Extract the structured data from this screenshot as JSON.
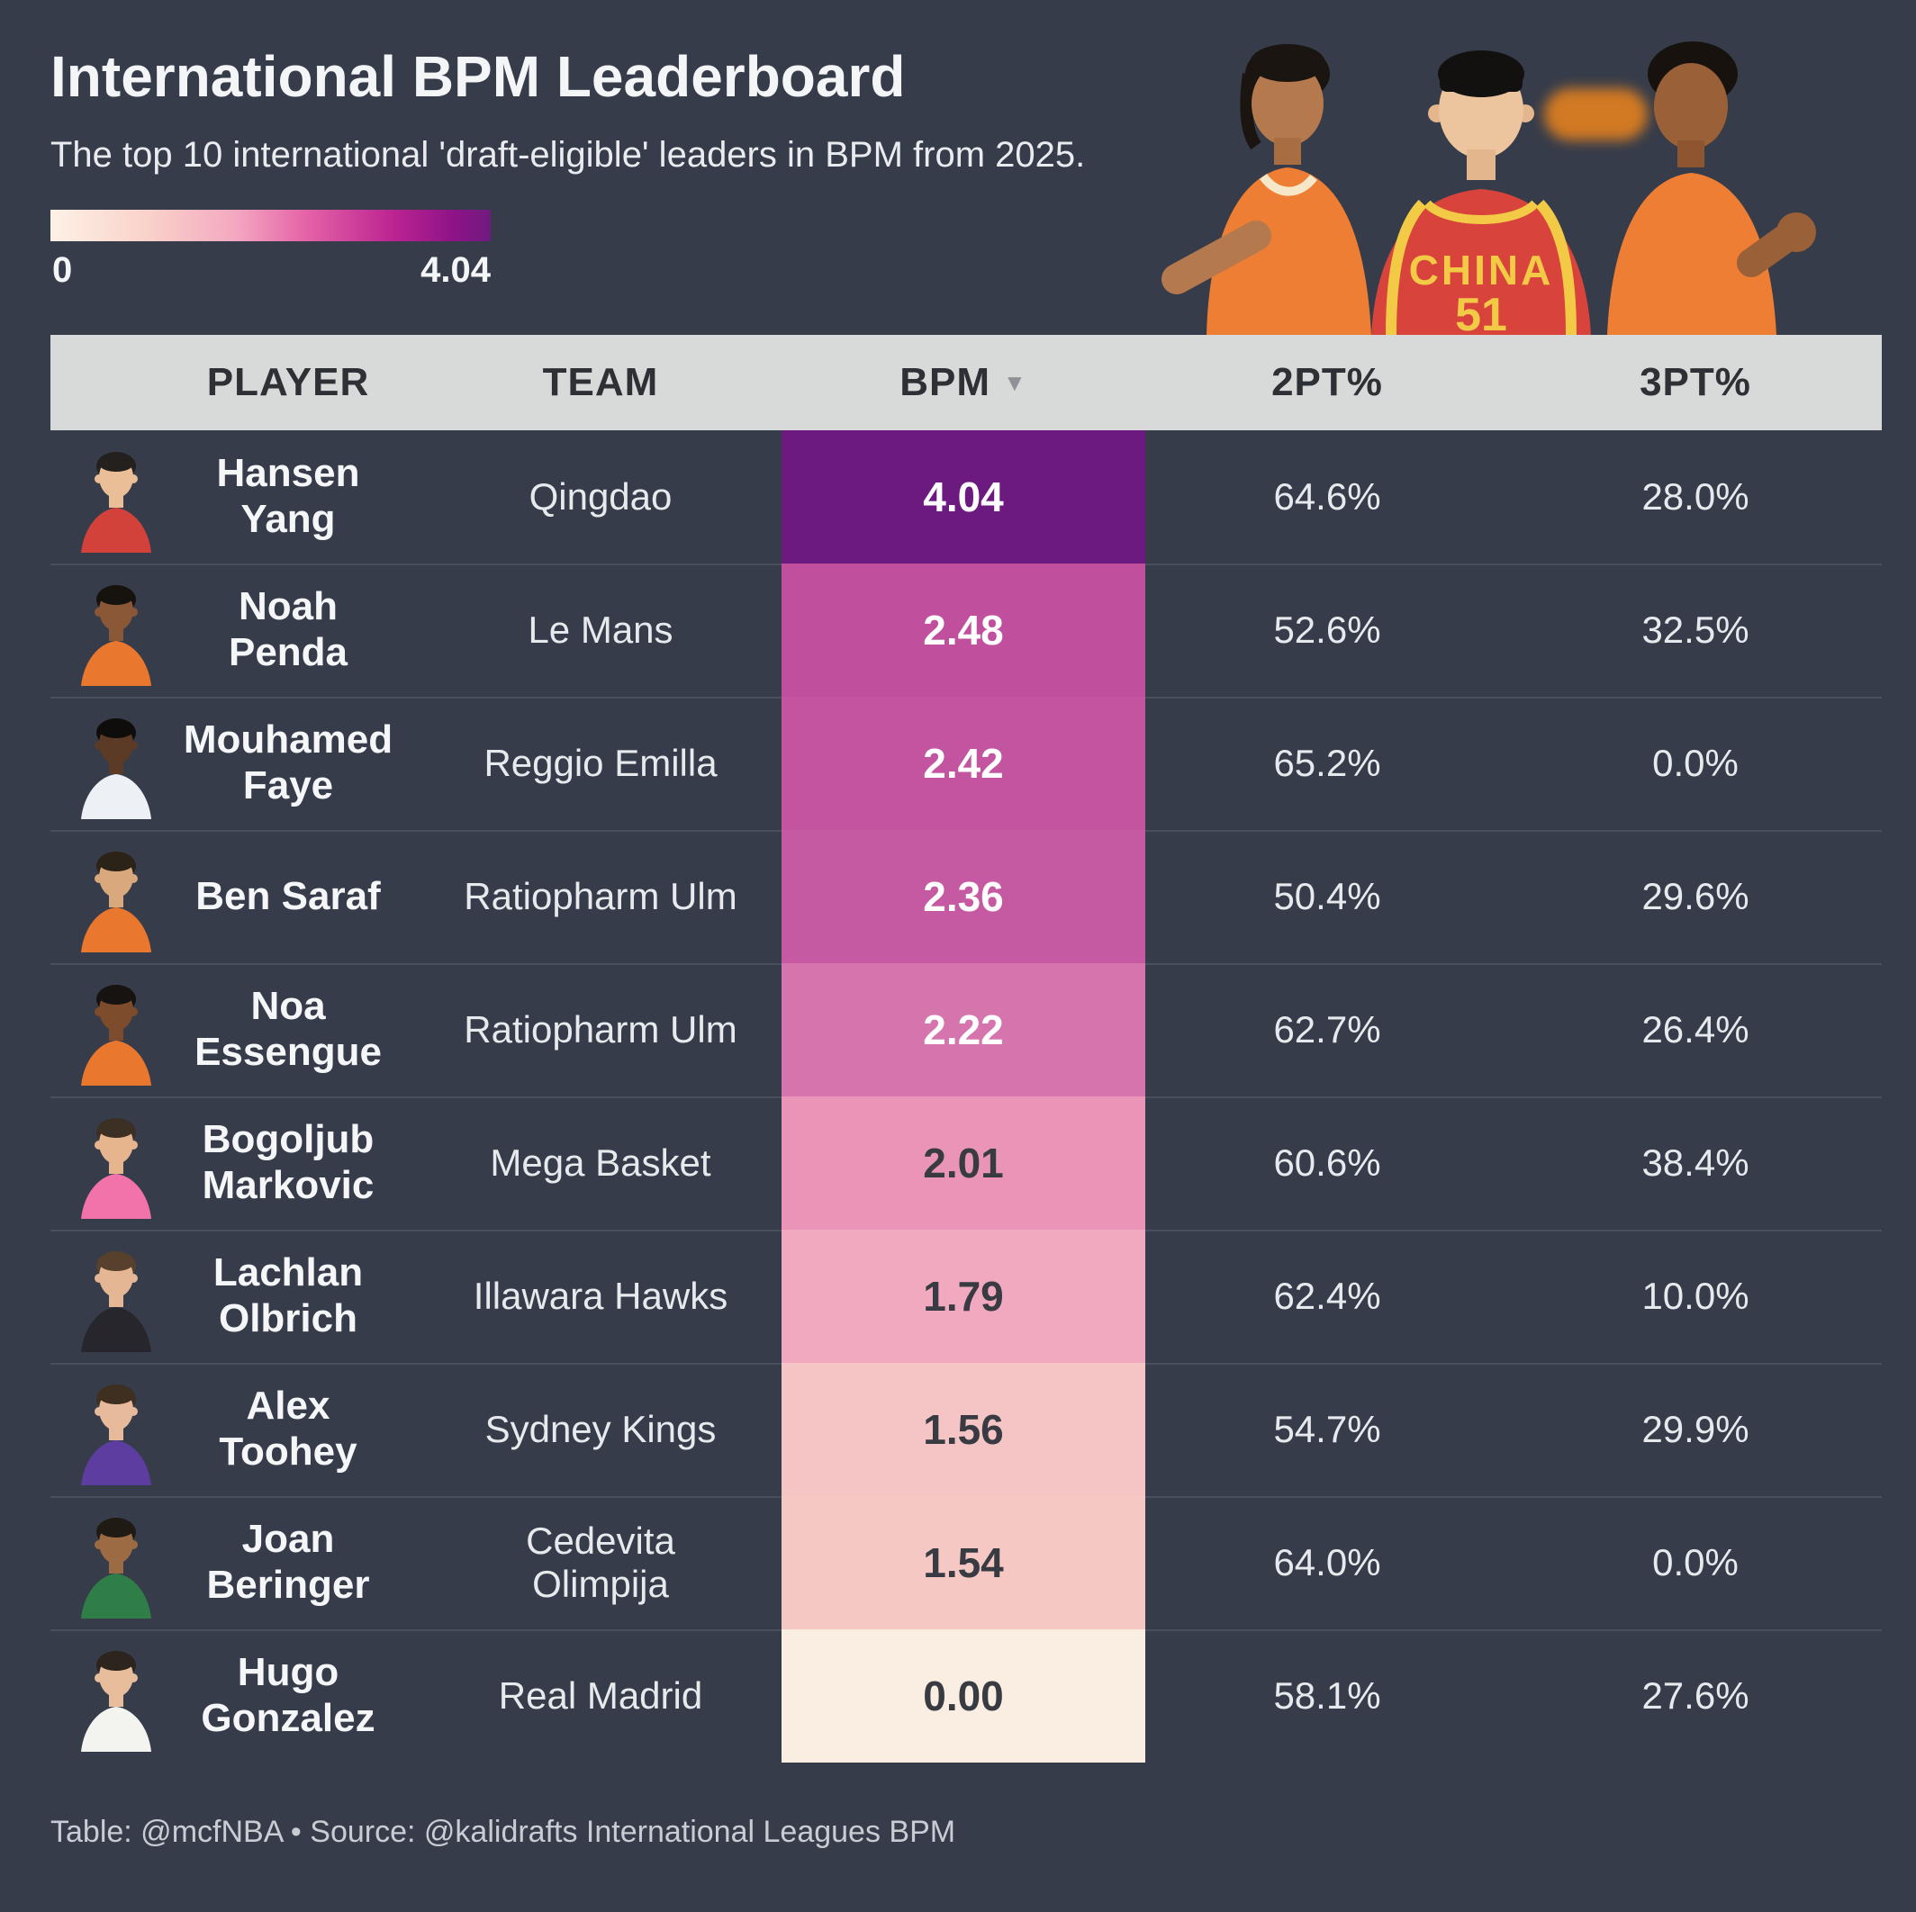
{
  "header": {
    "title": "International BPM Leaderboard",
    "subtitle": "The top 10 international 'draft-eligible' leaders in BPM from 2025.",
    "legend": {
      "min_label": "0",
      "max_label": "4.04",
      "gradient_colors": [
        "#fdf1e6",
        "#f4a8c0",
        "#bc2391",
        "#701b80"
      ]
    }
  },
  "hero": {
    "jersey_text": "CHINA",
    "jersey_number": "51"
  },
  "table": {
    "col_player": "PLAYER",
    "col_team": "TEAM",
    "col_bpm": "BPM",
    "sort_icon": "▼",
    "col_2pt": "2PT%",
    "col_3pt": "3PT%",
    "rows": [
      {
        "name": "Hansen\nYang",
        "team": "Qingdao",
        "bpm": "4.04",
        "p2": "64.6%",
        "p3": "28.0%",
        "bpm_color": "#6d1a80",
        "bpm_text_color": "#ffffff",
        "avatar": {
          "skin": "#eabf97",
          "hair": "#23201e",
          "jersey": "#d2423a"
        }
      },
      {
        "name": "Noah\nPenda",
        "team": "Le Mans",
        "bpm": "2.48",
        "p2": "52.6%",
        "p3": "32.5%",
        "bpm_color": "#c04f9d",
        "bpm_text_color": "#ffffff",
        "avatar": {
          "skin": "#8a5737",
          "hair": "#16120e",
          "jersey": "#e9772e"
        }
      },
      {
        "name": "Mouhamed\nFaye",
        "team": "Reggio Emilla",
        "bpm": "2.42",
        "p2": "65.2%",
        "p3": "0.0%",
        "bpm_color": "#c3549f",
        "bpm_text_color": "#ffffff",
        "avatar": {
          "skin": "#5b3a26",
          "hair": "#0f0d0b",
          "jersey": "#edf0f4"
        }
      },
      {
        "name": "Ben Saraf",
        "team": "Ratiopharm Ulm",
        "bpm": "2.36",
        "p2": "50.4%",
        "p3": "29.6%",
        "bpm_color": "#c65aa2",
        "bpm_text_color": "#ffffff",
        "avatar": {
          "skin": "#d9a87c",
          "hair": "#2b2218",
          "jersey": "#e9772e"
        }
      },
      {
        "name": "Noa\nEssengue",
        "team": "Ratiopharm Ulm",
        "bpm": "2.22",
        "p2": "62.7%",
        "p3": "26.4%",
        "bpm_color": "#d675ad",
        "bpm_text_color": "#ffffff",
        "avatar": {
          "skin": "#7c4c2c",
          "hair": "#171310",
          "jersey": "#e9772e"
        }
      },
      {
        "name": "Bogoljub\nMarkovic",
        "team": "Mega Basket",
        "bpm": "2.01",
        "p2": "60.6%",
        "p3": "38.4%",
        "bpm_color": "#ea95b8",
        "bpm_text_color": "#383b42",
        "avatar": {
          "skin": "#e6b48d",
          "hair": "#3c2f23",
          "jersey": "#f273aa"
        }
      },
      {
        "name": "Lachlan\nOlbrich",
        "team": "Illawara Hawks",
        "bpm": "1.79",
        "p2": "62.4%",
        "p3": "10.0%",
        "bpm_color": "#f1a9c0",
        "bpm_text_color": "#383b42",
        "avatar": {
          "skin": "#e4b694",
          "hair": "#57412c",
          "jersey": "#26262c"
        }
      },
      {
        "name": "Alex\nToohey",
        "team": "Sydney Kings",
        "bpm": "1.56",
        "p2": "54.7%",
        "p3": "29.9%",
        "bpm_color": "#f4c5c4",
        "bpm_text_color": "#383b42",
        "avatar": {
          "skin": "#e6ba9a",
          "hair": "#3e2f21",
          "jersey": "#5d3da0"
        }
      },
      {
        "name": "Joan\nBeringer",
        "team": "Cedevita\nOlimpija",
        "bpm": "1.54",
        "p2": "64.0%",
        "p3": "0.0%",
        "bpm_color": "#f5c8c4",
        "bpm_text_color": "#383b42",
        "avatar": {
          "skin": "#9d6b43",
          "hair": "#201a14",
          "jersey": "#2f7e47"
        }
      },
      {
        "name": "Hugo\nGonzalez",
        "team": "Real Madrid",
        "bpm": "0.00",
        "p2": "58.1%",
        "p3": "27.6%",
        "bpm_color": "#faeee2",
        "bpm_text_color": "#383b42",
        "avatar": {
          "skin": "#e7bd9c",
          "hair": "#2c241d",
          "jersey": "#f3f3ef"
        }
      }
    ]
  },
  "footer": {
    "credit": "Table: @mcfNBA • Source: @kalidrafts International Leagues BPM"
  },
  "chart_data": {
    "type": "table",
    "title": "International BPM Leaderboard",
    "subtitle": "The top 10 international 'draft-eligible' leaders in BPM from 2025.",
    "columns": [
      "PLAYER",
      "TEAM",
      "BPM",
      "2PT%",
      "3PT%"
    ],
    "colormap": {
      "label_min": 0,
      "label_max": 4.04,
      "palette": "cream-to-purple"
    },
    "sorted_by": "BPM descending",
    "rows": [
      {
        "player": "Hansen Yang",
        "team": "Qingdao",
        "bpm": 4.04,
        "two_pt_pct": 64.6,
        "three_pt_pct": 28.0
      },
      {
        "player": "Noah Penda",
        "team": "Le Mans",
        "bpm": 2.48,
        "two_pt_pct": 52.6,
        "three_pt_pct": 32.5
      },
      {
        "player": "Mouhamed Faye",
        "team": "Reggio Emilla",
        "bpm": 2.42,
        "two_pt_pct": 65.2,
        "three_pt_pct": 0.0
      },
      {
        "player": "Ben Saraf",
        "team": "Ratiopharm Ulm",
        "bpm": 2.36,
        "two_pt_pct": 50.4,
        "three_pt_pct": 29.6
      },
      {
        "player": "Noa Essengue",
        "team": "Ratiopharm Ulm",
        "bpm": 2.22,
        "two_pt_pct": 62.7,
        "three_pt_pct": 26.4
      },
      {
        "player": "Bogoljub Markovic",
        "team": "Mega Basket",
        "bpm": 2.01,
        "two_pt_pct": 60.6,
        "three_pt_pct": 38.4
      },
      {
        "player": "Lachlan Olbrich",
        "team": "Illawara Hawks",
        "bpm": 1.79,
        "two_pt_pct": 62.4,
        "three_pt_pct": 10.0
      },
      {
        "player": "Alex Toohey",
        "team": "Sydney Kings",
        "bpm": 1.56,
        "two_pt_pct": 54.7,
        "three_pt_pct": 29.9
      },
      {
        "player": "Joan Beringer",
        "team": "Cedevita Olimpija",
        "bpm": 1.54,
        "two_pt_pct": 64.0,
        "three_pt_pct": 0.0
      },
      {
        "player": "Hugo Gonzalez",
        "team": "Real Madrid",
        "bpm": 0.0,
        "two_pt_pct": 58.1,
        "three_pt_pct": 27.6
      }
    ]
  }
}
